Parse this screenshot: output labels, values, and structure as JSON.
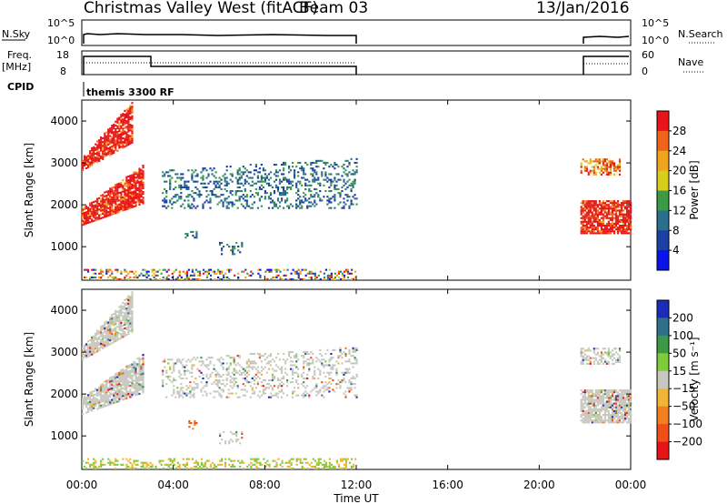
{
  "header": {
    "station": "Christmas Valley West (fitACF)",
    "beam": "Beam 03",
    "date": "13/Jan/2016"
  },
  "top_panels": {
    "nsky_label": "N.Sky",
    "nsky_ticks": [
      "10^5",
      "10^0"
    ],
    "nsearch_label": "N.Search",
    "nsearch_ticks": [
      "10^5",
      "10^0"
    ],
    "freq_label_1": "Freq.",
    "freq_label_2": "[MHz]",
    "freq_ticks": [
      "18",
      "8"
    ],
    "nave_label": "Nave",
    "nave_ticks": [
      "60",
      "0"
    ],
    "cpid_label": "CPID",
    "cpid_value": "themis 3300 RF"
  },
  "chart_data": [
    {
      "type": "heatmap",
      "name": "power-panel",
      "ylabel": "Slant Range [km]",
      "ylim": [
        200,
        4500
      ],
      "yticks": [
        "4000",
        "3000",
        "2000",
        "1000"
      ],
      "xlim_hours": [
        0,
        24
      ],
      "colorbar": {
        "label": "Power [dB]",
        "ticks": [
          "28",
          "24",
          "20",
          "16",
          "12",
          "8",
          "4"
        ],
        "colors": [
          "#e8141a",
          "#f0641a",
          "#f0a51e",
          "#d8cd1c",
          "#3c9a46",
          "#2a6f8e",
          "#1b3fa5",
          "#0a14e6"
        ]
      },
      "scatter_regions": [
        {
          "t_start": 0.0,
          "t_end": 2.7,
          "r_bottom": 1500,
          "r_top_start": 1900,
          "r_top_end": 2950,
          "level": "high"
        },
        {
          "t_start": 0.0,
          "t_end": 2.2,
          "r_bottom": 2800,
          "r_top_start": 3100,
          "r_top_end": 4450,
          "level": "high"
        },
        {
          "t_start": 3.5,
          "t_end": 12.0,
          "r_bottom": 1900,
          "r_top_start": 2800,
          "r_top_end": 3100,
          "level": "low"
        },
        {
          "t_start": 4.5,
          "t_end": 5.0,
          "r_bottom": 1150,
          "r_top_start": 1350,
          "r_top_end": 1350,
          "level": "low"
        },
        {
          "t_start": 6.0,
          "t_end": 7.0,
          "r_bottom": 800,
          "r_top_start": 1100,
          "r_top_end": 1100,
          "level": "low"
        },
        {
          "t_start": 21.8,
          "t_end": 24.0,
          "r_bottom": 1300,
          "r_top_start": 2100,
          "r_top_end": 2100,
          "level": "high"
        },
        {
          "t_start": 21.8,
          "t_end": 23.5,
          "r_bottom": 2700,
          "r_top_start": 3100,
          "r_top_end": 3100,
          "level": "mid"
        },
        {
          "t_start": 0.0,
          "t_end": 12.0,
          "r_bottom": 200,
          "r_top_start": 450,
          "r_top_end": 450,
          "level": "ground"
        }
      ]
    },
    {
      "type": "heatmap",
      "name": "velocity-panel",
      "ylabel": "Slant Range [km]",
      "ylim": [
        200,
        4500
      ],
      "yticks": [
        "4000",
        "3000",
        "2000",
        "1000"
      ],
      "xlim_hours": [
        0,
        24
      ],
      "colorbar": {
        "label": "Velocity [m s⁻¹]",
        "ticks": [
          "200",
          "100",
          "50",
          "15",
          "−15",
          "−50",
          "−100",
          "−200"
        ],
        "colors": [
          "#1c2bb8",
          "#2f6f8a",
          "#3c9a46",
          "#7ecb3c",
          "#c8c8c0",
          "#f0b436",
          "#f08020",
          "#f05018",
          "#e8141a"
        ]
      },
      "xticks": [
        "00:00",
        "04:00",
        "08:00",
        "12:00",
        "16:00",
        "20:00",
        "00:00"
      ],
      "xlabel": "Time UT"
    }
  ],
  "colors": {
    "axis": "#000000",
    "ground_scatter": "#c8c8c0"
  }
}
